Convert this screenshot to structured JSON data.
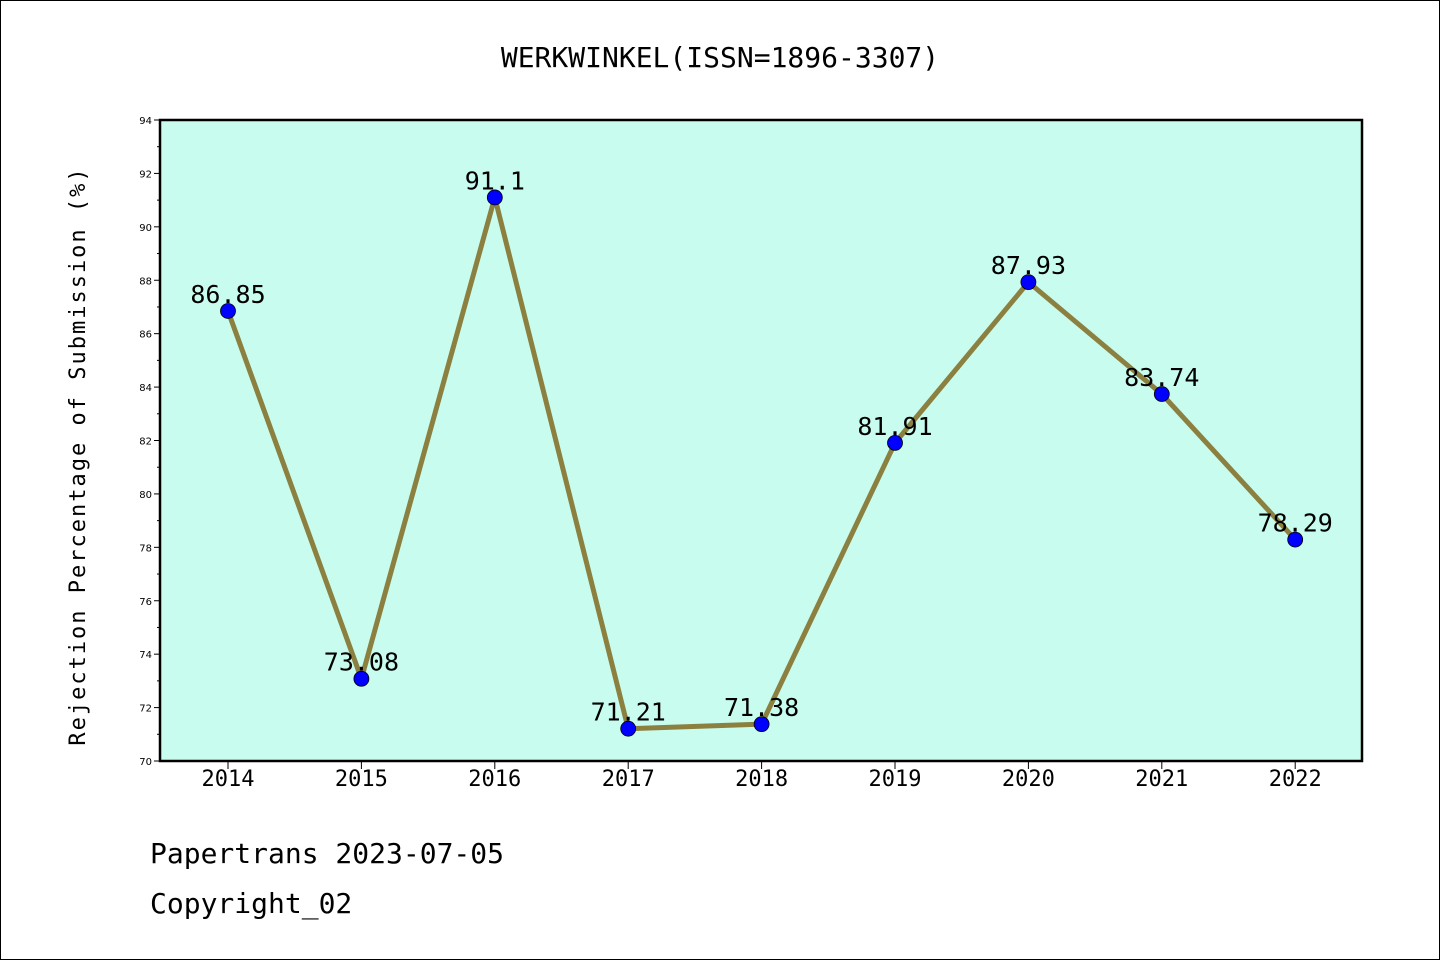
{
  "footer": {
    "line1": "Papertrans 2023-07-05",
    "line2": "Copyright_02"
  },
  "colors": {
    "plot_bg": "#c8fcee",
    "line": "#8b8040",
    "marker": "#0000ff"
  },
  "chart_data": {
    "type": "line",
    "title": "WERKWINKEL(ISSN=1896-3307)",
    "xlabel": "",
    "ylabel": "Rejection Percentage of Submission (%)",
    "categories": [
      "2014",
      "2015",
      "2016",
      "2017",
      "2018",
      "2019",
      "2020",
      "2021",
      "2022"
    ],
    "values": [
      86.85,
      73.08,
      91.1,
      71.21,
      71.38,
      81.91,
      87.93,
      83.74,
      78.29
    ],
    "data_labels": [
      "86.85",
      "73.08",
      "91.1",
      "71.21",
      "71.38",
      "81.91",
      "87.93",
      "83.74",
      "78.29"
    ],
    "ylim": [
      70,
      94
    ],
    "yticks": [
      70,
      72,
      74,
      76,
      78,
      80,
      82,
      84,
      86,
      88,
      90,
      92,
      94
    ],
    "grid": false,
    "legend": "none"
  }
}
